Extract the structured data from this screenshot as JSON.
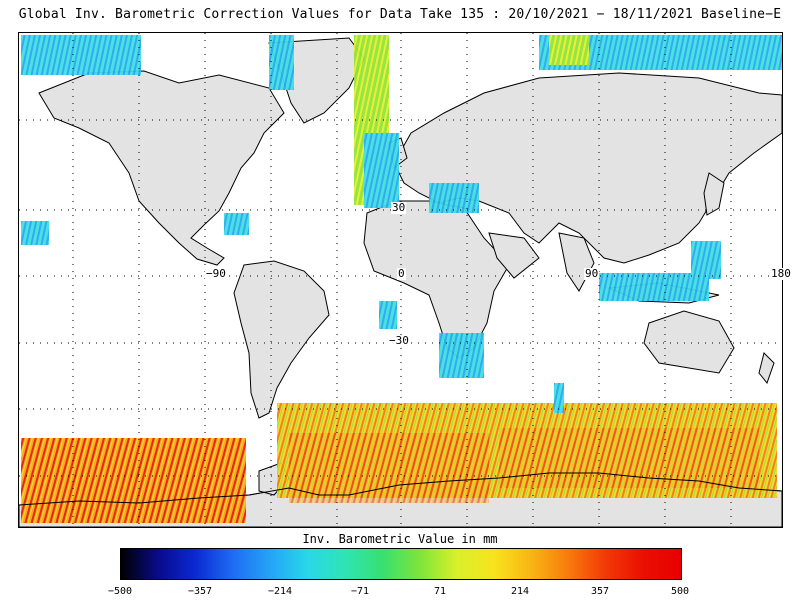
{
  "title": "Global Inv. Barometric Correction Values for Data Take 135 : 20/10/2021 − 18/11/2021 Baseline−E",
  "map": {
    "lon_labels": [
      "−90",
      "0",
      "90",
      "180"
    ],
    "lat_labels": [
      "30",
      "−30"
    ],
    "land_color": "#e3e3e3",
    "coast_color": "#000000"
  },
  "colorbar": {
    "title": "Inv. Barometric Value in mm",
    "ticks": [
      "−500",
      "−357",
      "−214",
      "−71",
      "71",
      "214",
      "357",
      "500"
    ],
    "colors": [
      "#000000",
      "#0a0a8c",
      "#0a2ad2",
      "#1f6cf4",
      "#24a4f6",
      "#28d8e8",
      "#2fe4b4",
      "#37e070",
      "#7ee43a",
      "#d8f02a",
      "#f8e31e",
      "#f8b414",
      "#f87a0c",
      "#f23806",
      "#ea0f02",
      "#e80000"
    ]
  }
}
